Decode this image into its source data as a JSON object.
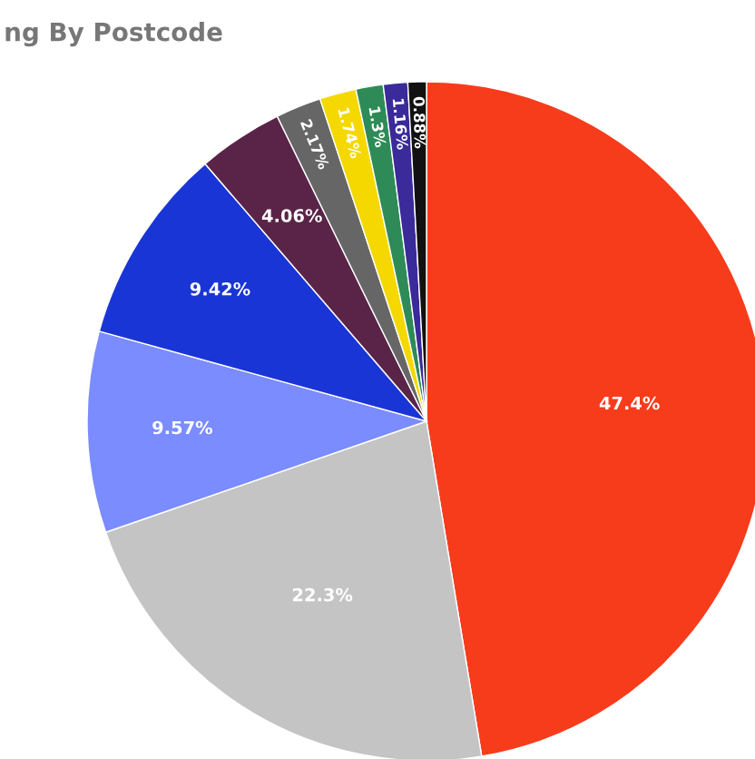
{
  "chart_data": {
    "type": "pie",
    "title": "ng By Postcode",
    "categories": [
      null,
      null,
      null,
      null,
      null,
      null,
      null,
      null,
      null,
      null
    ],
    "values": [
      47.4,
      22.3,
      9.57,
      9.42,
      4.06,
      2.17,
      1.74,
      1.3,
      1.16,
      0.88
    ],
    "colors": [
      "#f73c1c",
      "#c4c4c4",
      "#7a8cff",
      "#1a35d6",
      "#5a2448",
      "#666666",
      "#f5d800",
      "#2e8b57",
      "#3a2a9a",
      "#111111"
    ],
    "value_labels": [
      "47.4%",
      "22.3%",
      "9.57%",
      "9.42%",
      "4.06%",
      "2.17%",
      "1.74%",
      "1.3%",
      "1.16%",
      "0.88%"
    ]
  }
}
